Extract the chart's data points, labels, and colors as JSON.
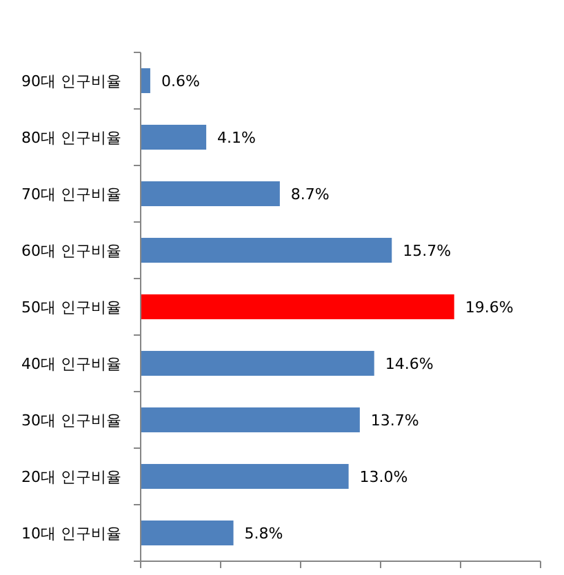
{
  "chart_data": {
    "type": "bar",
    "orientation": "horizontal",
    "categories": [
      "90대 인구비율",
      "80대 인구비율",
      "70대 인구비율",
      "60대 인구비율",
      "50대 인구비율",
      "40대 인구비율",
      "30대 인구비율",
      "20대 인구비율",
      "10대 인구비율"
    ],
    "values": [
      0.6,
      4.1,
      8.7,
      15.7,
      19.6,
      14.6,
      13.7,
      13.0,
      5.8
    ],
    "colors": [
      "#4f81bd",
      "#4f81bd",
      "#4f81bd",
      "#4f81bd",
      "#ff0000",
      "#4f81bd",
      "#4f81bd",
      "#4f81bd",
      "#4f81bd"
    ],
    "value_labels": [
      "0.6%",
      "4.1%",
      "8.7%",
      "15.7%",
      "19.6%",
      "14.6%",
      "13.7%",
      "13.0%",
      "5.8%"
    ],
    "xlim": [
      0,
      25
    ],
    "xticks": [
      {
        "value": 0,
        "label": null
      },
      {
        "value": 5,
        "label": null
      },
      {
        "value": 10,
        "label": null
      },
      {
        "value": 15,
        "label": null
      },
      {
        "value": 20,
        "label": null
      },
      {
        "value": 25,
        "label": null
      }
    ],
    "tick_labels": "y",
    "grid": false
  }
}
